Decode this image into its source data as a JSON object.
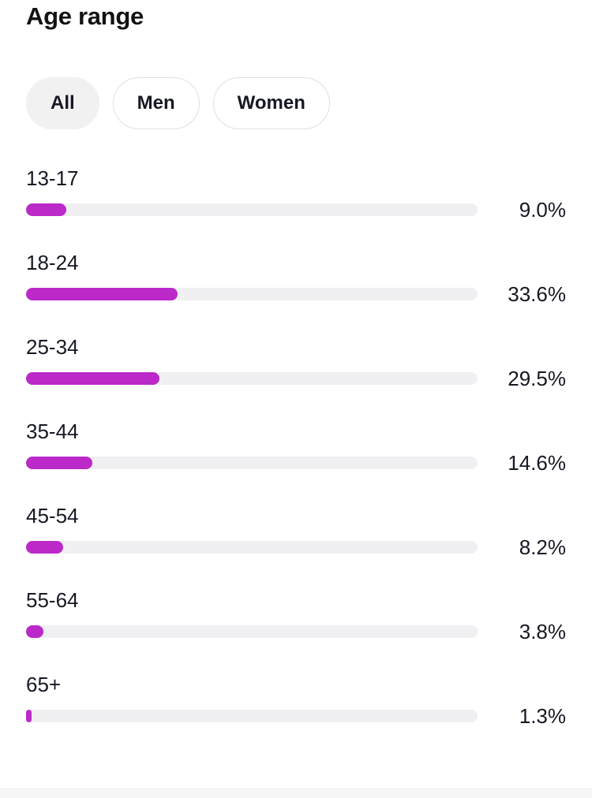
{
  "section": {
    "title": "Age range"
  },
  "filters": [
    {
      "label": "All",
      "selected": true
    },
    {
      "label": "Men",
      "selected": false
    },
    {
      "label": "Women",
      "selected": false
    }
  ],
  "chart_data": {
    "type": "bar",
    "orientation": "horizontal",
    "title": "Age range",
    "categories": [
      "13-17",
      "18-24",
      "25-34",
      "35-44",
      "45-54",
      "55-64",
      "65+"
    ],
    "values": [
      9.0,
      33.6,
      29.5,
      14.6,
      8.2,
      3.8,
      1.3
    ],
    "value_labels": [
      "9.0%",
      "33.6%",
      "29.5%",
      "14.6%",
      "8.2%",
      "3.8%",
      "1.3%"
    ],
    "unit": "%",
    "xlim": [
      0,
      100
    ],
    "grid": false,
    "legend": "none",
    "bar_color": "#BB29C9",
    "track_color": "#F0F0F3"
  },
  "colors": {
    "accent": "#BB29C9",
    "bar_track": "#F0F0F3",
    "text": "#161823",
    "pill_selected_bg": "#F1F1F2",
    "pill_border": "#E0E0E2",
    "footer_strip": "#F7F7F8"
  }
}
